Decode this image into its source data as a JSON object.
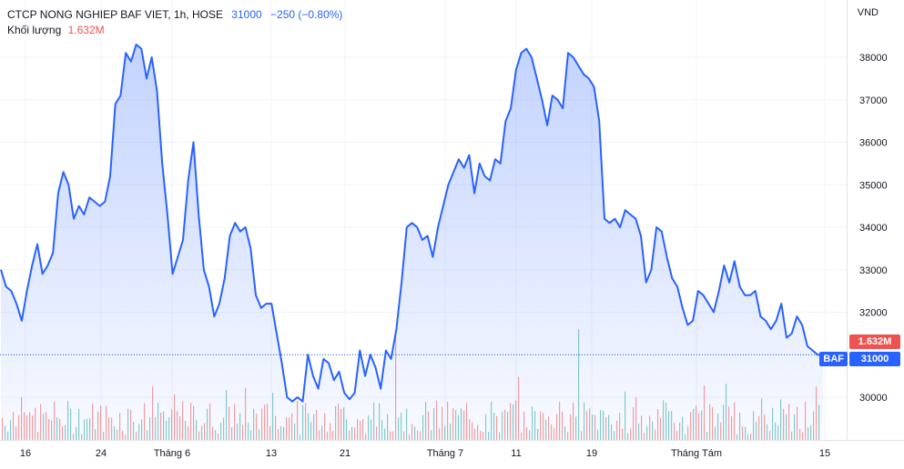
{
  "legend": {
    "symbol": "CTCP NONG NGHIEP BAF VIET, 1h, HOSE",
    "price": "31000",
    "change": "−250 (−0.80%)",
    "volume_label": "Khối lượng",
    "volume_value": "1.632M"
  },
  "axis": {
    "currency": "VND"
  },
  "tags": {
    "symbol": "BAF",
    "price": "31000",
    "volume": "1.632M"
  },
  "colors": {
    "line": "#2962ff",
    "area_top": "#2962ff",
    "vol_up": "#26a69a",
    "vol_down": "#ef5350"
  },
  "chart_data": {
    "type": "area",
    "title": "CTCP NONG NGHIEP BAF VIET, 1h, HOSE",
    "yaxis_unit": "VND",
    "ylim": [
      29000,
      38700
    ],
    "y_ticks": [
      30000,
      31000,
      32000,
      33000,
      34000,
      35000,
      36000,
      37000,
      38000
    ],
    "x_ticks": [
      "16",
      "24",
      "Tháng 6",
      "13",
      "21",
      "Tháng 7",
      "11",
      "19",
      "Tháng Tám",
      "15"
    ],
    "last_price": 31000,
    "series": [
      {
        "values": [
          33000,
          32600,
          32500,
          32200,
          31800,
          32500,
          33100,
          33600,
          32900,
          33100,
          33400,
          34800,
          35300,
          35000,
          34200,
          34500,
          34300,
          34700,
          34600,
          34500,
          34600,
          35200,
          36900,
          37100,
          38100,
          37900,
          38300,
          38200,
          37500,
          38000,
          37200,
          35500,
          34300,
          32900,
          33300,
          33700,
          35100,
          36000,
          34300,
          33000,
          32600,
          31900,
          32200,
          32800,
          33800,
          34100,
          33900,
          34000,
          33500,
          32400,
          32100,
          32200,
          32200,
          31500,
          30800,
          30000,
          29900,
          30000,
          29900,
          31000,
          30500,
          30200,
          30900,
          30800,
          30400,
          30600,
          30100,
          29950,
          30100,
          31100,
          30500,
          31000,
          30700,
          30200,
          31100,
          30900,
          31600,
          32700,
          34000,
          34100,
          34000,
          33700,
          33800,
          33300,
          34000,
          34500,
          35000,
          35300,
          35600,
          35400,
          35700,
          34800,
          35500,
          35200,
          35100,
          35600,
          35500,
          36500,
          36800,
          37700,
          38100,
          38200,
          38000,
          37500,
          37000,
          36400,
          37100,
          37000,
          36800,
          38100,
          38000,
          37800,
          37600,
          37500,
          37300,
          36500,
          34200,
          34100,
          34200,
          34000,
          34400,
          34300,
          34200,
          33800,
          32700,
          33000,
          34000,
          33900,
          33300,
          32800,
          32600,
          32100,
          31700,
          31800,
          32500,
          32400,
          32200,
          32000,
          32500,
          33100,
          32700,
          33200,
          32600,
          32400,
          32400,
          32500,
          31900,
          31800,
          31600,
          31800,
          32200,
          31400,
          31500,
          31900,
          31700,
          31200,
          31100,
          31000,
          31000
        ]
      }
    ],
    "volume": {
      "name": "Khối lượng",
      "last": "1.632M"
    }
  }
}
